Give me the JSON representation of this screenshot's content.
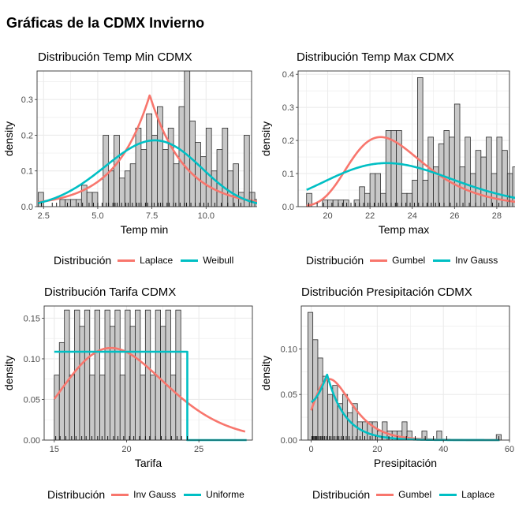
{
  "page_title": "Gráficas de la CDMX Invierno",
  "colors": {
    "bar_fill": "#c8c8c8",
    "bar_stroke": "#2b2b2b",
    "red": "#f8766d",
    "cyan": "#00bfc4",
    "grid": "#ebebeb"
  },
  "chart_data": [
    {
      "type": "bar",
      "title": "Distribución Temp Min CDMX",
      "xlabel": "Temp min",
      "ylabel": "density",
      "xlim": [
        2.2,
        12.1
      ],
      "ylim": [
        0,
        0.38
      ],
      "x_ticks": [
        2.5,
        5.0,
        7.5,
        10.0
      ],
      "x_tick_labels": [
        "2.5",
        "5.0",
        "7.5",
        "10.0"
      ],
      "y_ticks": [
        0,
        0.1,
        0.2,
        0.3
      ],
      "y_tick_labels": [
        "0.0",
        "0.1",
        "0.2",
        "0.3"
      ],
      "histogram": {
        "start": 2.25,
        "width": 0.25,
        "values": [
          0.04,
          0.0,
          0.0,
          0.0,
          0.02,
          0.02,
          0.02,
          0.02,
          0.06,
          0.04,
          0.04,
          0.0,
          0.2,
          0.1,
          0.2,
          0.08,
          0.1,
          0.12,
          0.22,
          0.16,
          0.26,
          0.2,
          0.28,
          0.16,
          0.22,
          0.12,
          0.28,
          0.38,
          0.24,
          0.18,
          0.14,
          0.22,
          0.1,
          0.16,
          0.22,
          0.1,
          0.12,
          0.04,
          0.2,
          0.04,
          0.02,
          0.1,
          0.04,
          0.0,
          0.02,
          0.08,
          0.04,
          0.0,
          0.02,
          0.04
        ]
      },
      "rug": [
        2.4,
        2.9,
        3.1,
        3.6,
        4.1,
        4.3,
        4.6,
        4.8,
        5.0,
        5.2,
        5.4,
        5.5,
        5.7,
        5.8,
        5.9,
        6.1,
        6.3,
        6.4,
        6.6,
        6.8,
        6.9,
        7.0,
        7.2,
        7.3,
        7.5,
        7.6,
        7.8,
        7.9,
        8.0,
        8.2,
        8.3,
        8.5,
        8.6,
        8.8,
        9.0,
        9.1,
        9.3,
        9.5,
        9.7,
        9.9,
        10.1,
        10.4,
        10.7,
        11.0,
        11.3,
        11.6
      ],
      "series": [
        {
          "name": "Laplace",
          "color": "#f8766d",
          "kind": "laplace",
          "params": {
            "mu": 7.4,
            "b": 1.6
          }
        },
        {
          "name": "Weibull",
          "color": "#00bfc4",
          "kind": "weibull",
          "params": {
            "k": 4.0,
            "lambda": 8.2
          }
        }
      ],
      "legend": {
        "title": "Distribución",
        "position": "bottom"
      }
    },
    {
      "type": "bar",
      "title": "Distribución Temp Max CDMX",
      "xlabel": "Temp max",
      "ylabel": "density",
      "xlim": [
        18.6,
        28.6
      ],
      "ylim": [
        0,
        0.41
      ],
      "x_ticks": [
        20,
        22,
        24,
        26,
        28
      ],
      "x_tick_labels": [
        "20",
        "22",
        "24",
        "26",
        "28"
      ],
      "y_ticks": [
        0,
        0.1,
        0.2,
        0.3,
        0.4
      ],
      "y_tick_labels": [
        "0.0",
        "0.1",
        "0.2",
        "0.3",
        "0.4"
      ],
      "histogram": {
        "start": 19.0,
        "width": 0.25,
        "values": [
          0.04,
          0.0,
          0.0,
          0.02,
          0.02,
          0.02,
          0.02,
          0.02,
          0.0,
          0.02,
          0.06,
          0.04,
          0.1,
          0.1,
          0.04,
          0.23,
          0.23,
          0.23,
          0.04,
          0.04,
          0.08,
          0.39,
          0.08,
          0.21,
          0.12,
          0.19,
          0.23,
          0.21,
          0.31,
          0.12,
          0.21,
          0.1,
          0.17,
          0.15,
          0.21,
          0.1,
          0.21,
          0.17,
          0.1,
          0.12,
          0.04,
          0.08,
          0.06,
          0.02,
          0.06,
          0.08,
          0.04,
          0.02,
          0.06,
          0.04
        ]
      },
      "rug": [
        19.1,
        19.5,
        19.8,
        20.2,
        20.5,
        20.7,
        20.9,
        21.1,
        21.3,
        21.5,
        21.7,
        21.9,
        22.0,
        22.2,
        22.4,
        22.6,
        22.8,
        23.0,
        23.2,
        23.3,
        23.5,
        23.7,
        23.9,
        24.1,
        24.3,
        24.5,
        24.7,
        24.9,
        25.1,
        25.3,
        25.5,
        25.8,
        26.1,
        26.4,
        26.7,
        27.0,
        27.4,
        27.8,
        28.1
      ],
      "series": [
        {
          "name": "Gumbel",
          "color": "#f8766d",
          "kind": "gumbel",
          "params": {
            "mu": 22.5,
            "beta": 1.75
          }
        },
        {
          "name": "Inv Gauss",
          "color": "#00bfc4",
          "kind": "invgauss",
          "params": {
            "mu": 23.4,
            "lambda": 1340
          }
        }
      ],
      "legend": {
        "title": "Distribución",
        "position": "bottom"
      }
    },
    {
      "type": "bar",
      "title": "Distribución Tarifa CDMX",
      "xlabel": "Tarifa",
      "ylabel": "density",
      "xlim": [
        14.3,
        28.7
      ],
      "ylim": [
        0,
        0.165
      ],
      "x_ticks": [
        15,
        20,
        25
      ],
      "x_tick_labels": [
        "15",
        "20",
        "25"
      ],
      "y_ticks": [
        0,
        0.05,
        0.1,
        0.15
      ],
      "y_tick_labels": [
        "0.00",
        "0.05",
        "0.10",
        "0.15"
      ],
      "histogram": {
        "start": 15.0,
        "width": 0.35,
        "values": [
          0.08,
          0.12,
          0.16,
          0.08,
          0.16,
          0.14,
          0.16,
          0.08,
          0.16,
          0.08,
          0.16,
          0.14,
          0.16,
          0.08,
          0.16,
          0.14,
          0.16,
          0.08,
          0.16,
          0.08,
          0.16,
          0.14,
          0.16,
          0.08,
          0.16,
          0.0,
          0.0,
          0.0,
          0.0,
          0.0,
          0.0,
          0.0,
          0.0,
          0.0,
          0.0,
          0.0,
          0.0,
          0.0
        ]
      },
      "rug": [
        15.1,
        15.4,
        15.8,
        16.2,
        16.5,
        16.9,
        17.2,
        17.6,
        18.0,
        18.3,
        18.7,
        19.1,
        19.4,
        19.8,
        20.2,
        20.5,
        20.9,
        21.3,
        21.6,
        22.0,
        22.4,
        22.7,
        23.1,
        23.5,
        23.8,
        24.2
      ],
      "series": [
        {
          "name": "Inv Gauss",
          "color": "#f8766d",
          "kind": "invgauss",
          "params": {
            "mu": 19.9,
            "lambda": 590
          }
        },
        {
          "name": "Uniforme",
          "color": "#00bfc4",
          "kind": "uniform",
          "params": {
            "a": 15.0,
            "b": 24.2
          }
        }
      ],
      "legend": {
        "title": "Distribución",
        "position": "bottom"
      }
    },
    {
      "type": "bar",
      "title": "Distribución Presipitación CDMX",
      "xlabel": "Presipitación",
      "ylabel": "density",
      "xlim": [
        -3,
        60
      ],
      "ylim": [
        0,
        0.147
      ],
      "x_ticks": [
        0,
        20,
        40,
        60
      ],
      "x_tick_labels": [
        "0",
        "20",
        "40",
        "60"
      ],
      "y_ticks": [
        0,
        0.05,
        0.1
      ],
      "y_tick_labels": [
        "0.00",
        "0.05",
        "0.10"
      ],
      "histogram": {
        "start": -1.0,
        "width": 1.5,
        "values": [
          0.14,
          0.11,
          0.09,
          0.07,
          0.05,
          0.06,
          0.04,
          0.05,
          0.03,
          0.04,
          0.02,
          0.02,
          0.02,
          0.02,
          0.01,
          0.02,
          0.01,
          0.01,
          0.01,
          0.02,
          0.01,
          0.0,
          0.0,
          0.01,
          0.0,
          0.0,
          0.01,
          0.0,
          0.0,
          0.0,
          0.0,
          0.0,
          0.0,
          0.0,
          0.0,
          0.0,
          0.0,
          0.0,
          0.006
        ]
      },
      "rug": [
        0.2,
        0.5,
        0.8,
        1.1,
        1.4,
        1.7,
        2.0,
        2.4,
        2.8,
        3.2,
        3.6,
        4.0,
        4.5,
        5.0,
        5.5,
        6.0,
        6.6,
        7.2,
        7.8,
        8.4,
        9.1,
        9.8,
        10.6,
        11.5,
        12.5,
        13.6,
        14.8,
        16.2,
        17.8,
        19.5,
        21.4,
        23.5,
        26.0,
        28.8,
        31.5,
        34.5,
        37.0,
        41.0,
        56.8
      ],
      "series": [
        {
          "name": "Gumbel",
          "color": "#f8766d",
          "kind": "gumbel",
          "params": {
            "mu": 5.5,
            "beta": 5.5
          }
        },
        {
          "name": "Laplace",
          "color": "#00bfc4",
          "kind": "laplace_shape",
          "params": {
            "peak_x": 4.8,
            "peak_y": 0.072,
            "decay_left": 3.0,
            "decay_right": 5.5,
            "start_x": 0,
            "start_y": 0.042
          }
        }
      ],
      "legend": {
        "title": "Distribución",
        "position": "bottom"
      }
    }
  ]
}
